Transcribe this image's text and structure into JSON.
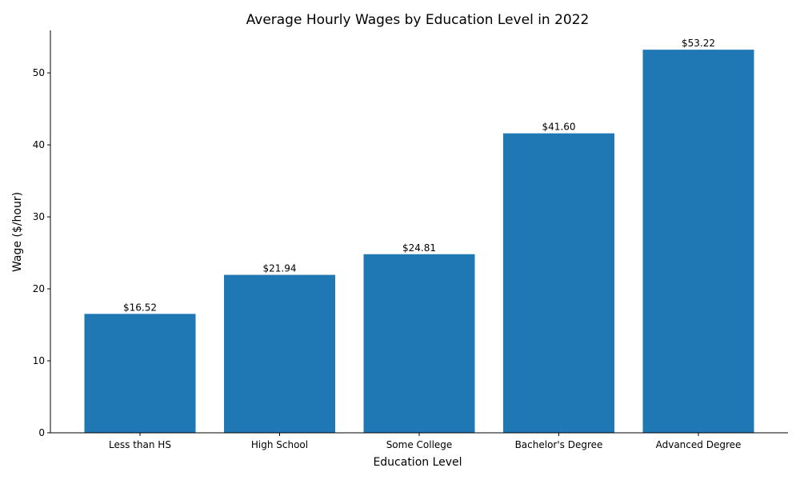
{
  "chart_data": {
    "type": "bar",
    "title": "Average Hourly Wages by Education Level in 2022",
    "xlabel": "Education Level",
    "ylabel": "Wage ($/hour)",
    "categories": [
      "Less than HS",
      "High School",
      "Some College",
      "Bachelor's Degree",
      "Advanced Degree"
    ],
    "values": [
      16.52,
      21.94,
      24.81,
      41.6,
      53.22
    ],
    "data_labels": [
      "$16.52",
      "$21.94",
      "$24.81",
      "$41.60",
      "$53.22"
    ],
    "ylim": [
      0,
      55.9
    ],
    "yticks": [
      0,
      10,
      20,
      30,
      40,
      50
    ],
    "bar_color": "#1f77b4",
    "grid": false,
    "legend": "none"
  }
}
